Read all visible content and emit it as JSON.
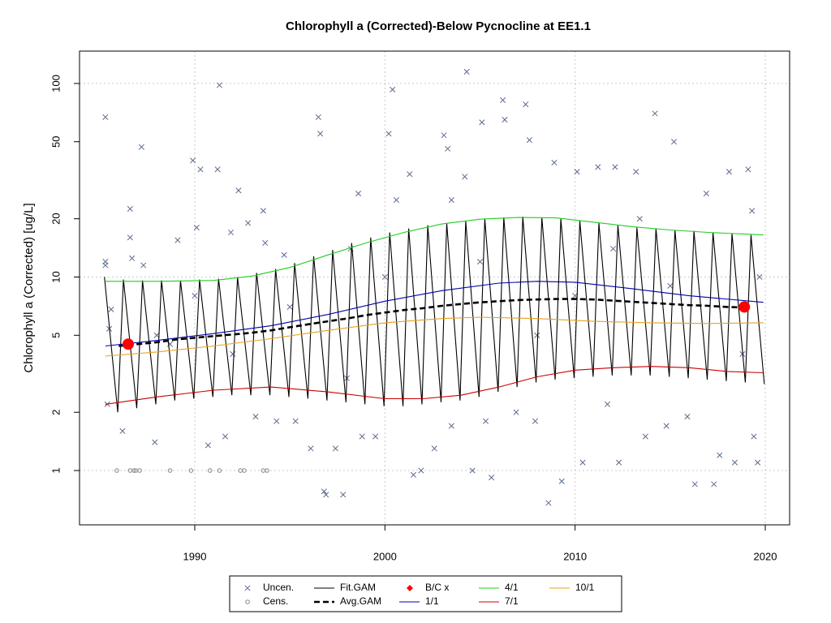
{
  "chart_data": {
    "type": "scatter",
    "title": "Chlorophyll a (Corrected)-Below Pycnocline at EE1.1",
    "y_label": "Chlorophyll a (Corrected) [ug/L]",
    "y_log": true,
    "grid": true,
    "xlim": [
      1983.94,
      2021.28
    ],
    "xticks": [
      1990,
      2000,
      2010,
      2020
    ],
    "ylim": [
      0.524,
      147
    ],
    "yticks": [
      1,
      2,
      5,
      10,
      20,
      50,
      100
    ],
    "legend_position": "bottom",
    "series": [
      {
        "name": "Uncen.",
        "color": "#5a6b8c",
        "marker": "x",
        "x": [
          1985.3,
          1985.3,
          1985.3,
          1985.5,
          1985.4,
          1986.2,
          1986.6,
          1986.6,
          1986.7,
          1987.2,
          1987.3,
          1987.9,
          1988.7,
          1989.1,
          1989.9,
          1990.1,
          1990.3,
          1990.7,
          1991.2,
          1991.3,
          1991.6,
          1991.9,
          1992.3,
          1992.8,
          1993.2,
          1993.7,
          1993.6,
          1994.3,
          1994.7,
          1995.3,
          1996.1,
          1996.5,
          1996.6,
          1996.8,
          1996.9,
          1997.4,
          1997.8,
          1998.2,
          1998.6,
          1998.8,
          1999.5,
          2000.2,
          2000.4,
          2000.6,
          2001.3,
          2001.5,
          2001.9,
          2002.6,
          2003.1,
          2003.3,
          2003.5,
          2003.5,
          2004.3,
          2004.2,
          2004.6,
          2005.1,
          2005.3,
          2005.6,
          2006.2,
          2006.3,
          2006.9,
          2007.4,
          2007.6,
          2007.9,
          2008.6,
          2008.9,
          2009.3,
          2010.1,
          2010.4,
          2011.2,
          2011.7,
          2012.1,
          2012.3,
          2013.2,
          2013.4,
          2013.7,
          2014.2,
          2014.8,
          2015.2,
          2015.9,
          2016.3,
          2016.9,
          2017.3,
          2017.6,
          2018.1,
          2018.4,
          2018.8,
          2019.1,
          2019.3,
          2019.4,
          2019.6,
          2019.7,
          1985.6,
          1988,
          1990,
          1995,
          2000,
          2005,
          2010,
          2015,
          1992,
          1998,
          2008,
          2012
        ],
        "values": [
          67,
          12,
          11.5,
          5.4,
          2.2,
          1.6,
          22.5,
          16,
          12.5,
          47,
          11.5,
          1.4,
          4.5,
          15.5,
          40,
          18,
          36,
          1.35,
          36,
          98,
          1.5,
          17,
          28,
          19,
          1.9,
          15,
          22,
          1.8,
          13,
          1.8,
          1.3,
          67,
          55,
          0.78,
          0.75,
          1.3,
          0.75,
          14,
          27,
          1.5,
          1.5,
          55,
          93,
          25,
          34,
          0.95,
          1.0,
          1.3,
          54,
          46,
          25,
          1.7,
          115,
          33,
          1.0,
          63,
          1.8,
          0.92,
          82,
          65,
          2.0,
          78,
          51,
          1.8,
          0.68,
          39,
          0.88,
          35,
          1.1,
          37,
          2.2,
          37,
          1.1,
          35,
          20,
          1.5,
          70,
          1.7,
          50,
          1.9,
          0.85,
          27,
          0.85,
          1.2,
          35,
          1.1,
          4,
          36,
          22,
          1.5,
          1.1,
          10,
          6.8,
          5,
          8,
          7,
          10,
          12,
          8,
          9,
          4,
          3,
          5,
          14
        ]
      },
      {
        "name": "Cens.",
        "color": "#888888",
        "marker": "circle",
        "x": [
          1985.9,
          1986.6,
          1986.8,
          1986.9,
          1987.1,
          1988.7,
          1989.8,
          1990.8,
          1991.3,
          1992.4,
          1992.6,
          1993.6,
          1993.8
        ],
        "values": [
          1,
          1,
          1,
          1,
          1,
          1,
          1,
          1,
          1,
          1,
          1,
          1,
          1
        ]
      },
      {
        "name": "Fit.GAM",
        "color": "#000000",
        "marker": "line",
        "line_style": "solid",
        "x": [
          1985.25,
          1985.95,
          1986.25,
          1986.95,
          1987.25,
          1987.95,
          1988.25,
          1988.95,
          1989.25,
          1989.95,
          1990.25,
          1990.95,
          1991.25,
          1991.95,
          1992.25,
          1992.95,
          1993.25,
          1993.95,
          1994.25,
          1994.95,
          1995.25,
          1995.95,
          1996.25,
          1996.95,
          1997.25,
          1997.95,
          1998.25,
          1998.95,
          1999.25,
          1999.95,
          2000.25,
          2000.95,
          2001.25,
          2001.95,
          2002.25,
          2002.95,
          2003.25,
          2003.95,
          2004.25,
          2004.95,
          2005.25,
          2005.95,
          2006.25,
          2006.95,
          2007.25,
          2007.95,
          2008.25,
          2008.95,
          2009.25,
          2009.95,
          2010.25,
          2010.95,
          2011.25,
          2011.95,
          2012.25,
          2012.95,
          2013.25,
          2013.95,
          2014.25,
          2014.95,
          2015.25,
          2015.95,
          2016.25,
          2016.95,
          2017.25,
          2017.95,
          2018.25,
          2018.95,
          2019.25,
          2019.95
        ],
        "values": [
          10,
          2.0,
          9.7,
          2.1,
          9.6,
          2.2,
          9.6,
          2.3,
          9.6,
          2.35,
          9.7,
          2.4,
          9.8,
          2.45,
          10,
          2.45,
          10.5,
          2.45,
          11,
          2.4,
          11.8,
          2.35,
          12.8,
          2.3,
          13.8,
          2.25,
          15,
          2.2,
          16,
          2.15,
          17,
          2.15,
          17.8,
          2.2,
          18.5,
          2.25,
          19,
          2.3,
          19.5,
          2.4,
          20,
          2.55,
          20.3,
          2.7,
          20.5,
          2.85,
          20.3,
          2.95,
          20,
          3.0,
          19.5,
          3.05,
          19,
          3.1,
          18.5,
          3.1,
          18,
          3.1,
          17.8,
          3.05,
          17.5,
          3.0,
          17.3,
          2.95,
          17,
          2.9,
          16.8,
          2.85,
          16.5,
          2.8
        ]
      },
      {
        "name": "Avg.GAM",
        "color": "#000000",
        "marker": "line",
        "line_style": "dashed",
        "x": [
          1986,
          1987,
          1988,
          1989,
          1990,
          1991,
          1992,
          1993,
          1994,
          1995,
          1996,
          1997,
          1998,
          1999,
          2000,
          2001,
          2002,
          2003,
          2004,
          2005,
          2006,
          2007,
          2008,
          2009,
          2010,
          2011,
          2012,
          2013,
          2014,
          2015,
          2016,
          2017,
          2018,
          2019
        ],
        "values": [
          4.4,
          4.5,
          4.6,
          4.75,
          4.85,
          4.95,
          5.05,
          5.15,
          5.3,
          5.5,
          5.7,
          5.9,
          6.1,
          6.35,
          6.55,
          6.75,
          6.9,
          7.1,
          7.25,
          7.4,
          7.5,
          7.6,
          7.65,
          7.7,
          7.7,
          7.65,
          7.55,
          7.45,
          7.35,
          7.25,
          7.15,
          7.1,
          7.0,
          6.95
        ]
      },
      {
        "name": "B/C x",
        "color": "#ff0000",
        "marker": "dot",
        "x": [
          1986.5,
          2018.9
        ],
        "values": [
          4.5,
          7
        ]
      },
      {
        "name": "1/1",
        "color": "#0000aa",
        "marker": "line",
        "line_style": "solid",
        "x": [
          1985.3,
          1988,
          1991,
          1994,
          1997,
          2000,
          2003,
          2006,
          2008,
          2010,
          2013,
          2016,
          2019.9
        ],
        "values": [
          4.4,
          4.7,
          5.1,
          5.6,
          6.4,
          7.5,
          8.5,
          9.3,
          9.5,
          9.4,
          8.7,
          8.0,
          7.4
        ]
      },
      {
        "name": "4/1",
        "color": "#22cc22",
        "marker": "line",
        "line_style": "solid",
        "x": [
          1985.3,
          1988,
          1991,
          1993,
          1995,
          1997,
          1999,
          2001,
          2003,
          2005,
          2007,
          2009,
          2011,
          2013,
          2015,
          2017,
          2019.9
        ],
        "values": [
          9.5,
          9.5,
          9.6,
          10.1,
          11.2,
          13,
          15,
          17,
          18.8,
          19.9,
          20.3,
          20.2,
          19.2,
          18.2,
          17.5,
          17,
          16.5
        ]
      },
      {
        "name": "7/1",
        "color": "#cc0000",
        "marker": "line",
        "line_style": "solid",
        "x": [
          1985.3,
          1988,
          1991,
          1994,
          1997,
          2000,
          2002,
          2004,
          2006,
          2008,
          2010,
          2012,
          2014,
          2016,
          2018,
          2019.9
        ],
        "values": [
          2.2,
          2.4,
          2.6,
          2.7,
          2.55,
          2.35,
          2.35,
          2.45,
          2.7,
          3.05,
          3.3,
          3.4,
          3.45,
          3.4,
          3.25,
          3.2
        ]
      },
      {
        "name": "10/1",
        "color": "#e8a020",
        "marker": "line",
        "line_style": "solid",
        "x": [
          1985.3,
          1988,
          1991,
          1994,
          1997,
          2000,
          2003,
          2005,
          2008,
          2011,
          2014,
          2017,
          2019.9
        ],
        "values": [
          3.9,
          4.1,
          4.4,
          4.8,
          5.3,
          5.8,
          6.1,
          6.2,
          6.1,
          5.9,
          5.8,
          5.75,
          5.8
        ]
      }
    ]
  }
}
